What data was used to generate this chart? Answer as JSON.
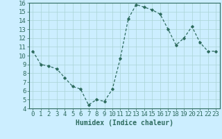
{
  "x": [
    0,
    1,
    2,
    3,
    4,
    5,
    6,
    7,
    8,
    9,
    10,
    11,
    12,
    13,
    14,
    15,
    16,
    17,
    18,
    19,
    20,
    21,
    22,
    23
  ],
  "y": [
    10.5,
    9.0,
    8.8,
    8.5,
    7.5,
    6.5,
    6.2,
    4.4,
    5.0,
    4.8,
    6.2,
    9.7,
    14.2,
    15.8,
    15.5,
    15.2,
    14.7,
    13.0,
    11.2,
    12.0,
    13.3,
    11.5,
    10.5,
    10.5
  ],
  "line_color": "#2d6b5e",
  "marker": "D",
  "marker_size": 1.8,
  "linewidth": 0.9,
  "bg_color": "#cceeff",
  "grid_color": "#aad4d4",
  "xlabel": "Humidex (Indice chaleur)",
  "xlim": [
    -0.5,
    23.5
  ],
  "ylim": [
    4,
    16
  ],
  "yticks": [
    4,
    5,
    6,
    7,
    8,
    9,
    10,
    11,
    12,
    13,
    14,
    15,
    16
  ],
  "xticks": [
    0,
    1,
    2,
    3,
    4,
    5,
    6,
    7,
    8,
    9,
    10,
    11,
    12,
    13,
    14,
    15,
    16,
    17,
    18,
    19,
    20,
    21,
    22,
    23
  ],
  "xlabel_fontsize": 7,
  "tick_fontsize": 6.5
}
